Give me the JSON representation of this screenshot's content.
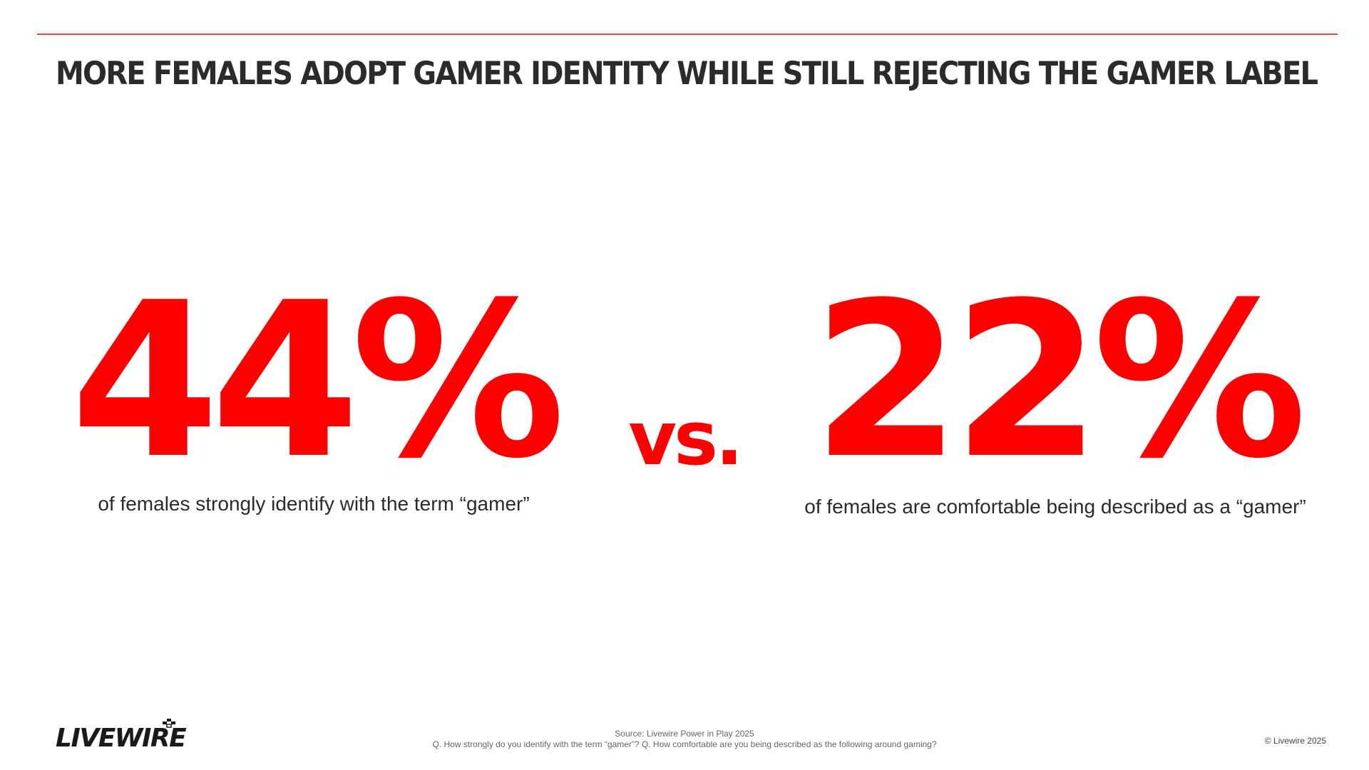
{
  "slide": {
    "title": "MORE FEMALES ADOPT GAMER IDENTITY WHILE STILL REJECTING THE GAMER LABEL",
    "accent_color": "#ff0000",
    "rule_color": "#e04b3a"
  },
  "stats": {
    "left": {
      "value": "44%",
      "caption": "of females strongly identify with the term “gamer”"
    },
    "separator": "vs.",
    "right": {
      "value": "22%",
      "caption": "of females are comfortable being described as a “gamer”"
    }
  },
  "footer": {
    "logo_text": "LIVEWIRE",
    "source_line": "Source: Livewire Power in Play 2025",
    "question_line": "Q. How strongly do you identify with the term “gamer”? Q. How comfortable are you being described as the following around gaming?",
    "copyright": "© Livewire 2025"
  }
}
